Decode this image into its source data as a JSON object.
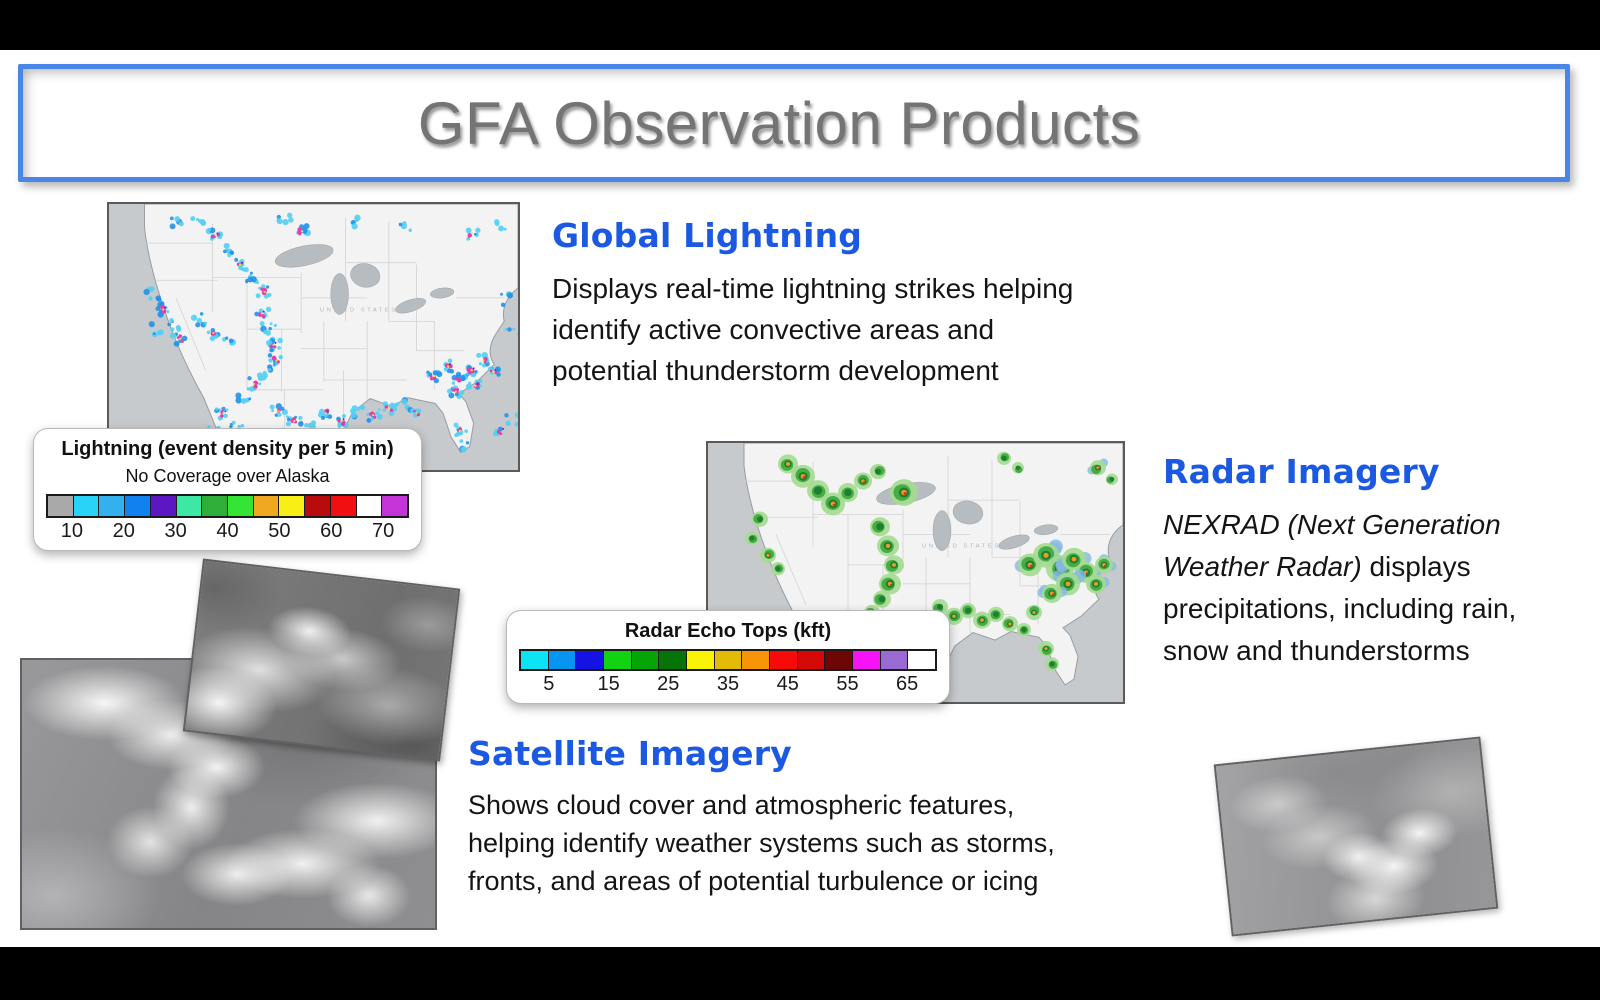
{
  "title": "GFA Observation Products",
  "sections": {
    "lightning": {
      "heading": "Global Lightning",
      "body_lines": [
        "Displays real-time lightning strikes helping",
        "identify active convective areas and",
        "potential thunderstorm development"
      ]
    },
    "radar": {
      "heading": "Radar Imagery",
      "body_lines": [
        [
          {
            "t": "NEXRAD (Next Generation",
            "i": true
          }
        ],
        [
          {
            "t": "Weather Radar)",
            "i": true
          },
          {
            "t": " displays",
            "i": false
          }
        ],
        [
          {
            "t": "precipitations, including rain,",
            "i": false
          }
        ],
        [
          {
            "t": "snow and thunderstorms",
            "i": false
          }
        ]
      ]
    },
    "satellite": {
      "heading": "Satellite Imagery",
      "body_lines": [
        "Shows cloud cover and atmospheric features,",
        "helping identify weather systems such as storms,",
        "fronts, and areas of potential turbulence or icing"
      ]
    }
  },
  "legends": {
    "lightning": {
      "title": "Lightning (event density per 5 min)",
      "subtitle": "No Coverage over Alaska",
      "colors": [
        "#a9a9a9",
        "#29d3f7",
        "#33b1ee",
        "#1181ef",
        "#5c16c4",
        "#3ce8a4",
        "#2fae3a",
        "#35e535",
        "#f0a823",
        "#f8ef17",
        "#b70b0e",
        "#f20f12",
        "#ffffff",
        "#c335d6"
      ],
      "labels": [
        "10",
        "20",
        "30",
        "40",
        "50",
        "60",
        "70"
      ]
    },
    "radar": {
      "title": "Radar Echo Tops (kft)",
      "colors": [
        "#0ce4f5",
        "#0795f2",
        "#1513e3",
        "#12d312",
        "#06a506",
        "#077407",
        "#f9f405",
        "#e2ba07",
        "#f79407",
        "#f70a0a",
        "#d50808",
        "#6f0606",
        "#f713f7",
        "#9a6ad4",
        "#ffffff"
      ],
      "labels": [
        "5",
        "15",
        "25",
        "35",
        "45",
        "55",
        "65"
      ]
    }
  },
  "maps": {
    "us_label": "UNITED STATES"
  },
  "colors": {
    "heading_blue": "#1c59e2",
    "title_gray": "#747474",
    "frame_blue": "#4a85e8"
  }
}
